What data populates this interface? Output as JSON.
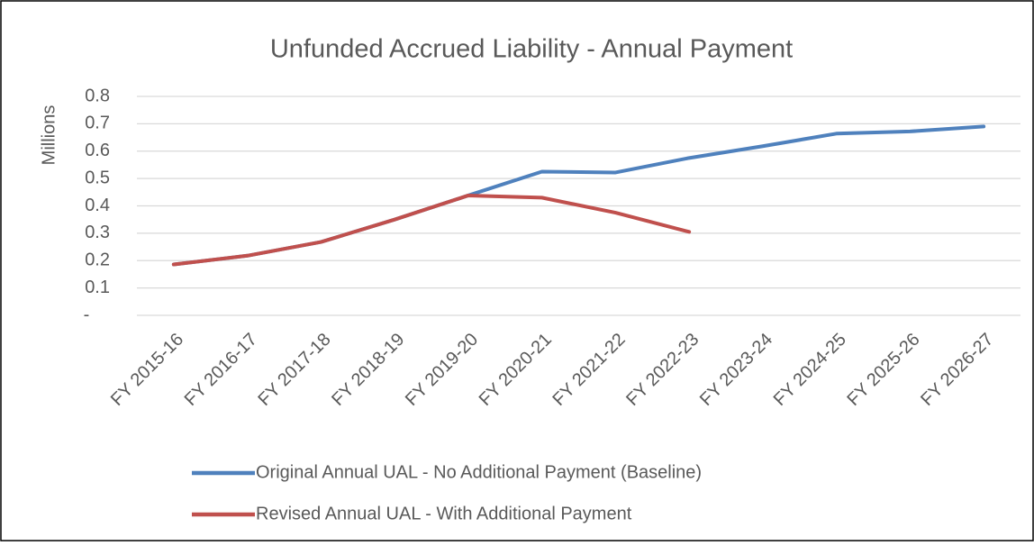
{
  "chart_data": {
    "type": "line",
    "title": "Unfunded Accrued Liability - Annual Payment",
    "ylabel": "Millions",
    "categories": [
      "FY 2015-16",
      "FY 2016-17",
      "FY 2017-18",
      "FY 2018-19",
      "FY 2019-20",
      "FY 2020-21",
      "FY 2021-22",
      "FY 2022-23",
      "FY 2023-24",
      "FY 2024-25",
      "FY 2025-26",
      "FY 2026-27"
    ],
    "series": [
      {
        "name": "Original Annual UAL - No Additional Payment (Baseline)",
        "color": "#4f81bd",
        "values": [
          0.186,
          0.218,
          0.268,
          0.35,
          0.438,
          0.525,
          0.522,
          0.575,
          0.618,
          0.664,
          0.672,
          0.69
        ]
      },
      {
        "name": "Revised Annual UAL - With Additional Payment",
        "color": "#c0504d",
        "values": [
          0.186,
          0.218,
          0.268,
          0.35,
          0.438,
          0.43,
          0.375,
          0.305,
          null,
          null,
          null,
          null
        ]
      }
    ],
    "ylim": [
      0,
      0.8
    ],
    "yticks": [
      {
        "value": 0,
        "label": "-"
      },
      0.1,
      0.2,
      0.3,
      0.4,
      0.5,
      0.6,
      0.7,
      0.8
    ],
    "grid": true,
    "legend": "bottom"
  }
}
